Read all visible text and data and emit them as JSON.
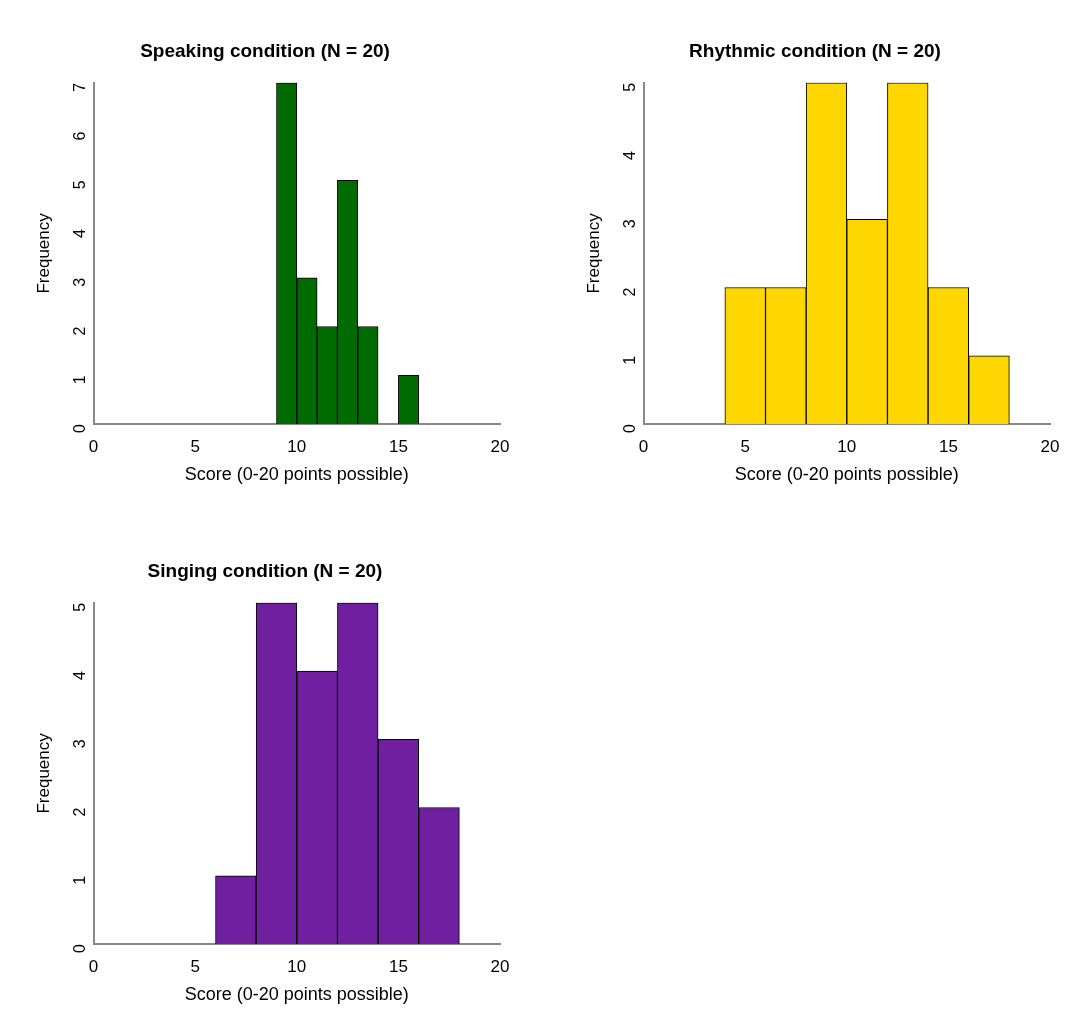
{
  "chart_data": [
    {
      "type": "histogram",
      "title": "Speaking condition (N = 20)",
      "xlabel": "Score (0-20 points possible)",
      "ylabel": "Frequency",
      "bins": [
        9,
        10,
        11,
        12,
        13,
        14,
        15,
        16
      ],
      "values": [
        7,
        3,
        2,
        5,
        2,
        0,
        1
      ],
      "color": "#006b00",
      "xlim": [
        0,
        20
      ],
      "xticks": [
        0,
        5,
        10,
        15,
        20
      ],
      "ylim": [
        0,
        7
      ],
      "yticks": [
        0,
        1,
        2,
        3,
        4,
        5,
        6,
        7
      ],
      "grid": false,
      "legend": false
    },
    {
      "type": "histogram",
      "title": "Rhythmic condition (N = 20)",
      "xlabel": "Score (0-20 points possible)",
      "ylabel": "Frequency",
      "bins": [
        4,
        6,
        8,
        10,
        12,
        14,
        16,
        18
      ],
      "values": [
        2,
        2,
        5,
        3,
        5,
        2,
        1
      ],
      "color": "#ffd700",
      "xlim": [
        0,
        20
      ],
      "xticks": [
        0,
        5,
        10,
        15,
        20
      ],
      "ylim": [
        0,
        5
      ],
      "yticks": [
        0,
        1,
        2,
        3,
        4,
        5
      ],
      "grid": false,
      "legend": false
    },
    {
      "type": "histogram",
      "title": "Singing condition (N = 20)",
      "xlabel": "Score (0-20 points possible)",
      "ylabel": "Frequency",
      "bins": [
        6,
        8,
        10,
        12,
        14,
        16,
        18
      ],
      "values": [
        1,
        5,
        4,
        5,
        3,
        2
      ],
      "color": "#6f1f9f",
      "xlim": [
        0,
        20
      ],
      "xticks": [
        0,
        5,
        10,
        15,
        20
      ],
      "ylim": [
        0,
        5
      ],
      "yticks": [
        0,
        1,
        2,
        3,
        4,
        5
      ],
      "grid": false,
      "legend": false
    }
  ]
}
